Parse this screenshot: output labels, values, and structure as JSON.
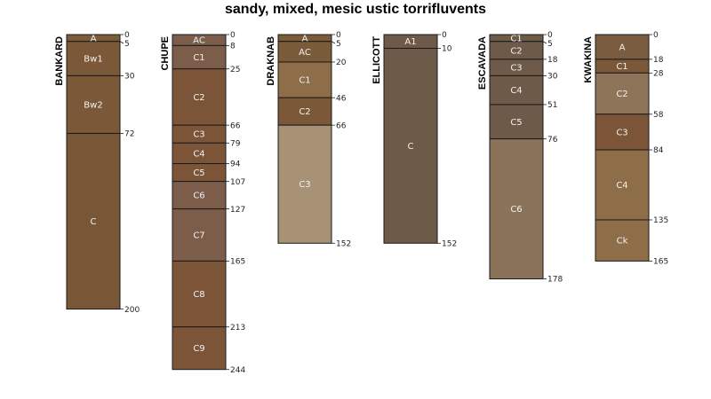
{
  "title": "sandy, mixed, mesic ustic torrifluvents",
  "chart_data": {
    "type": "soil-profile-sketch",
    "title": "sandy, mixed, mesic ustic torrifluvents",
    "depth_units": "cm",
    "depth_range": [
      0,
      244
    ],
    "profiles": [
      {
        "name": "BANKARD",
        "horizons": [
          {
            "name": "A",
            "top": 0,
            "bottom": 5,
            "color": "#7a5c3a"
          },
          {
            "name": "Bw1",
            "top": 5,
            "bottom": 30,
            "color": "#7a5838"
          },
          {
            "name": "Bw2",
            "top": 30,
            "bottom": 72,
            "color": "#7a5838"
          },
          {
            "name": "C",
            "top": 72,
            "bottom": 200,
            "color": "#775735"
          }
        ]
      },
      {
        "name": "CHUPE",
        "horizons": [
          {
            "name": "AC",
            "top": 0,
            "bottom": 8,
            "color": "#7b5d4a"
          },
          {
            "name": "C1",
            "top": 8,
            "bottom": 25,
            "color": "#7b5d4a"
          },
          {
            "name": "C2",
            "top": 25,
            "bottom": 66,
            "color": "#7c5538"
          },
          {
            "name": "C3",
            "top": 66,
            "bottom": 79,
            "color": "#7c5538"
          },
          {
            "name": "C4",
            "top": 79,
            "bottom": 94,
            "color": "#7c5538"
          },
          {
            "name": "C5",
            "top": 94,
            "bottom": 107,
            "color": "#7c5538"
          },
          {
            "name": "C6",
            "top": 107,
            "bottom": 127,
            "color": "#7b5d4a"
          },
          {
            "name": "C7",
            "top": 127,
            "bottom": 165,
            "color": "#7b5d4a"
          },
          {
            "name": "C8",
            "top": 165,
            "bottom": 213,
            "color": "#7c5538"
          },
          {
            "name": "C9",
            "top": 213,
            "bottom": 244,
            "color": "#7c5538"
          }
        ]
      },
      {
        "name": "DRAKNAB",
        "horizons": [
          {
            "name": "A",
            "top": 0,
            "bottom": 5,
            "color": "#7a5c3a"
          },
          {
            "name": "AC",
            "top": 5,
            "bottom": 20,
            "color": "#7a5c3a"
          },
          {
            "name": "C1",
            "top": 20,
            "bottom": 46,
            "color": "#8e6e48"
          },
          {
            "name": "C2",
            "top": 46,
            "bottom": 66,
            "color": "#7a5838"
          },
          {
            "name": "C3",
            "top": 66,
            "bottom": 152,
            "color": "#a89276"
          }
        ]
      },
      {
        "name": "ELLICOTT",
        "horizons": [
          {
            "name": "A1",
            "top": 0,
            "bottom": 10,
            "color": "#6e5a48"
          },
          {
            "name": "C",
            "top": 10,
            "bottom": 152,
            "color": "#6e5a48"
          }
        ]
      },
      {
        "name": "ESCAVADA",
        "horizons": [
          {
            "name": "C1",
            "top": 0,
            "bottom": 5,
            "color": "#6e5a48"
          },
          {
            "name": "C2",
            "top": 5,
            "bottom": 18,
            "color": "#6e5a48"
          },
          {
            "name": "C3",
            "top": 18,
            "bottom": 30,
            "color": "#6e5a48"
          },
          {
            "name": "C4",
            "top": 30,
            "bottom": 51,
            "color": "#6e5a48"
          },
          {
            "name": "C5",
            "top": 51,
            "bottom": 76,
            "color": "#6e5a48"
          },
          {
            "name": "C6",
            "top": 76,
            "bottom": 178,
            "color": "#8b735a"
          }
        ]
      },
      {
        "name": "KWAKINA",
        "horizons": [
          {
            "name": "A",
            "top": 0,
            "bottom": 18,
            "color": "#7a5c40"
          },
          {
            "name": "C1",
            "top": 18,
            "bottom": 28,
            "color": "#7a5838"
          },
          {
            "name": "C2",
            "top": 28,
            "bottom": 58,
            "color": "#8e7458"
          },
          {
            "name": "C3",
            "top": 58,
            "bottom": 84,
            "color": "#7c5538"
          },
          {
            "name": "C4",
            "top": 84,
            "bottom": 135,
            "color": "#8e6e48"
          },
          {
            "name": "Ck",
            "top": 135,
            "bottom": 165,
            "color": "#8e6e48"
          }
        ]
      }
    ]
  }
}
